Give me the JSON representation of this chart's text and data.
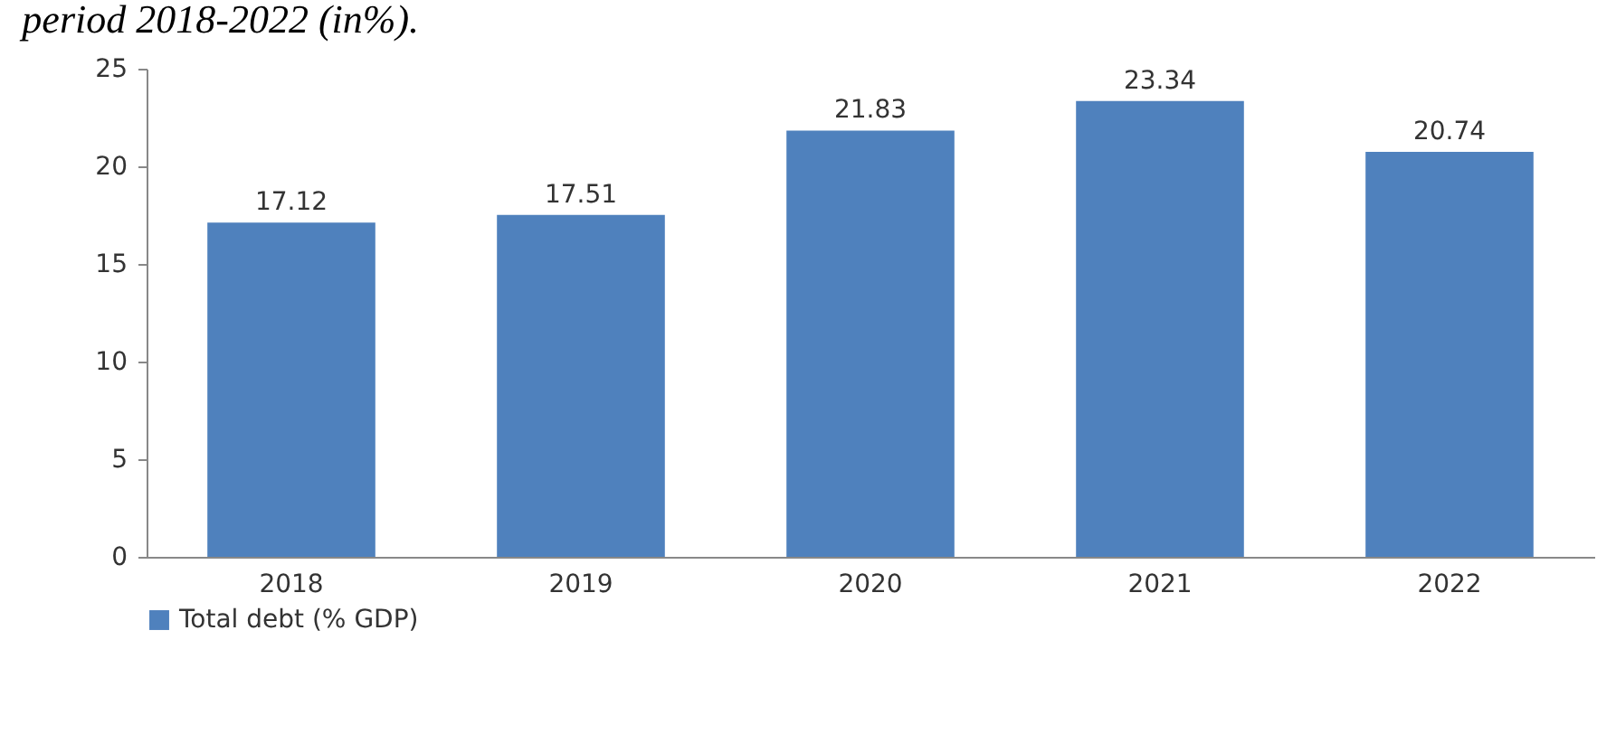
{
  "chart_data": {
    "type": "bar",
    "title": "period 2018-2022 (in%).",
    "categories": [
      "2018",
      "2019",
      "2020",
      "2021",
      "2022"
    ],
    "series": [
      {
        "name": "Total debt      (% GDP)",
        "color": "#4f81bd",
        "values": [
          17.12,
          17.51,
          21.83,
          23.34,
          20.74
        ]
      }
    ],
    "ylim": [
      0,
      25
    ],
    "yticks": [
      0,
      5,
      10,
      15,
      20,
      25
    ],
    "grid": false,
    "legend": "bottom",
    "data_labels": true
  }
}
